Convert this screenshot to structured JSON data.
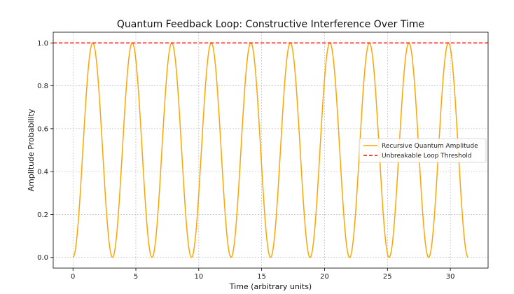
{
  "chart_data": {
    "type": "line",
    "title": "Quantum Feedback Loop: Constructive Interference Over Time",
    "xlabel": "Time (arbitrary units)",
    "ylabel": "Amplitude Probability",
    "xlim": [
      -1.57,
      33.0
    ],
    "ylim": [
      -0.05,
      1.05
    ],
    "xticks": [
      0,
      5,
      10,
      15,
      20,
      25,
      30
    ],
    "yticks": [
      0.0,
      0.2,
      0.4,
      0.6,
      0.8,
      1.0
    ],
    "xtick_labels": [
      "0",
      "5",
      "10",
      "15",
      "20",
      "25",
      "30"
    ],
    "ytick_labels": [
      "0.0",
      "0.2",
      "0.4",
      "0.6",
      "0.8",
      "1.0"
    ],
    "grid": true,
    "legend_position": "center-right",
    "series": [
      {
        "name": "Recursive Quantum Amplitude",
        "style": "solid",
        "color": "#FFA500",
        "function": "sin(t)^2",
        "x_start": 0,
        "x_end": 31.4,
        "sample_points": [
          [
            0.0,
            0.0
          ],
          [
            0.785,
            0.5
          ],
          [
            1.571,
            1.0
          ],
          [
            2.356,
            0.5
          ],
          [
            3.142,
            0.0
          ],
          [
            4.712,
            1.0
          ],
          [
            6.283,
            0.0
          ],
          [
            7.854,
            1.0
          ],
          [
            9.425,
            0.0
          ],
          [
            10.996,
            1.0
          ],
          [
            12.566,
            0.0
          ],
          [
            14.137,
            1.0
          ],
          [
            15.708,
            0.0
          ],
          [
            17.279,
            1.0
          ],
          [
            18.85,
            0.0
          ],
          [
            20.42,
            1.0
          ],
          [
            21.991,
            0.0
          ],
          [
            23.562,
            1.0
          ],
          [
            25.133,
            0.0
          ],
          [
            26.704,
            1.0
          ],
          [
            28.274,
            0.0
          ],
          [
            29.845,
            1.0
          ],
          [
            31.4,
            0.0
          ]
        ]
      },
      {
        "name": "Unbreakable Loop Threshold",
        "style": "dashed",
        "color": "#FF0000",
        "y": 1.0
      }
    ]
  }
}
